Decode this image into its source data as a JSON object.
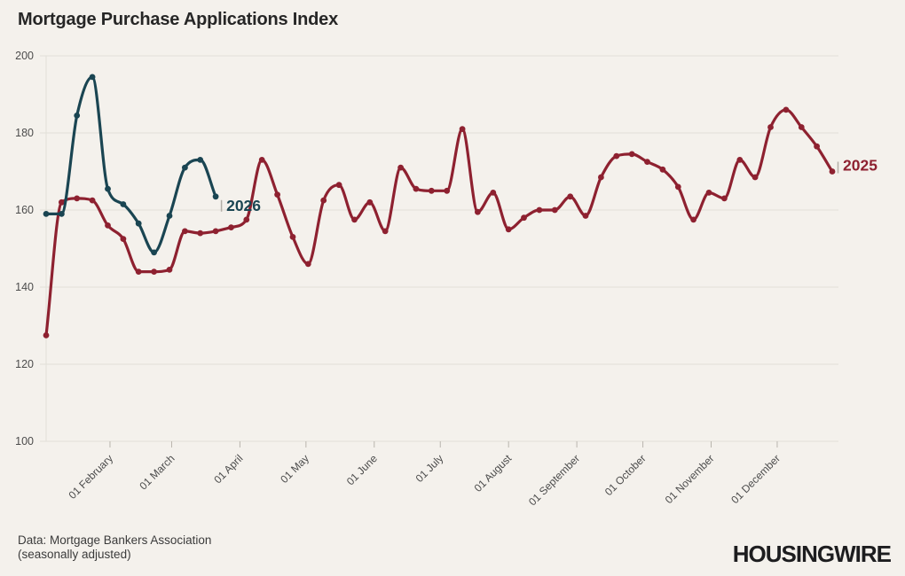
{
  "title": "Mortgage Purchase Applications Index",
  "footer": {
    "source_line1": "Data: Mortgage Bankers Association",
    "source_line2": "(seasonally adjusted)",
    "logo_text": "HOUSINGWIRE"
  },
  "colors": {
    "background": "#f4f1ec",
    "grid": "#e2dfd8",
    "axis_text": "#4c4c4c",
    "month_tick": "#b9b5ad",
    "leader_tick": "#b3afa7",
    "series_2025": "#8e2130",
    "series_2026": "#1a4552"
  },
  "chart_data": {
    "type": "line",
    "title": "Mortgage Purchase Applications Index",
    "xlabel": "",
    "ylabel": "",
    "ylim": [
      100,
      200
    ],
    "y_ticks": [
      100,
      120,
      140,
      160,
      180,
      200
    ],
    "grid": "horizontal gridlines on",
    "legend_position": "end-of-line labels",
    "x_unit": "weekly points, January through December",
    "x_tick_labels": [
      "01 February",
      "01 March",
      "01 April",
      "01 May",
      "01 June",
      "01 July",
      "01 August",
      "01 September",
      "01 October",
      "01 November",
      "01 December"
    ],
    "series": [
      {
        "name": "2025",
        "color": "#8e2130",
        "end_label": "2025",
        "values": [
          127.5,
          162,
          163,
          162.5,
          156,
          152.5,
          144,
          144,
          144.5,
          154.5,
          154,
          154.5,
          155.5,
          157.5,
          173,
          164,
          153,
          146,
          162.5,
          166.5,
          157.5,
          162,
          154.5,
          171,
          165.5,
          165,
          165,
          181,
          159.5,
          164.5,
          155,
          158,
          160,
          160,
          163.5,
          158.5,
          168.5,
          174,
          174.5,
          172.5,
          170.5,
          166,
          157.5,
          164.5,
          163,
          173,
          168.5,
          181.5,
          186,
          181.5,
          176.5,
          170
        ]
      },
      {
        "name": "2026",
        "color": "#1a4552",
        "end_label": "2026",
        "values": [
          159,
          159,
          184.5,
          194.5,
          165.5,
          161.5,
          156.5,
          149,
          158.5,
          171,
          173,
          163.5
        ]
      }
    ]
  }
}
